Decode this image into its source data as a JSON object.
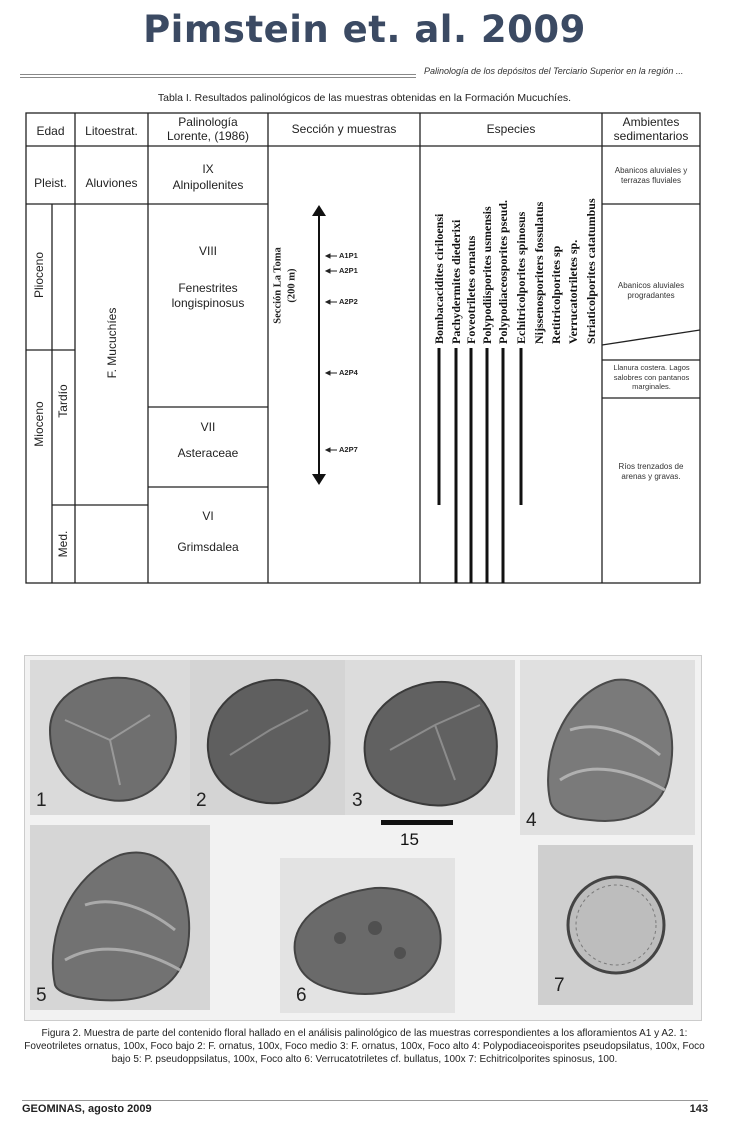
{
  "banner": {
    "title": "Pimstein et. al. 2009"
  },
  "running_head": "Palinología de los depósitos del Terciario Superior en la región ...",
  "table": {
    "caption": "Tabla I. Resultados palinológicos de las muestras obtenidas en la Formación Mucuchíes.",
    "headers": {
      "edad": "Edad",
      "litoestrat": "Litoestrat.",
      "palinologia_1": "Palinología",
      "palinologia_2": "Lorente, (1986)",
      "seccion": "Sección  y muestras",
      "especies": "Especies",
      "ambientes_1": "Ambientes",
      "ambientes_2": "sedimentarios"
    },
    "epochs": {
      "pleist": "Pleist.",
      "plioceno": "Plioceno",
      "mioceno": "Mioceno",
      "tardio": "Tardío",
      "med": "Med."
    },
    "lithology": {
      "aluviones": "Aluviones",
      "mucuchies": "F. Mucuchíes"
    },
    "zones": [
      {
        "num": "IX",
        "name": "Alnipollenites"
      },
      {
        "num": "VIII",
        "name": "Fenestrites longispinosus"
      },
      {
        "num": "VII",
        "name": "Asteraceae"
      },
      {
        "num": "VI",
        "name": "Grimsdalea"
      }
    ],
    "section_label_1": "Sección La Toma",
    "section_label_2": "(200 m)",
    "samples": [
      "A1P1",
      "A2P1",
      "A2P2",
      "A2P4",
      "A2P7"
    ],
    "species": [
      "Bombacacidites ciriloensi",
      "Pachydermites diederixi",
      "Foveotriletes ornatus",
      "Polypodiisporites usmensis",
      "Polypodiaceosporites pseud.",
      "Echitricolporites spinosus",
      "Nijssenosporiters fossulatus",
      "Retitricolporites sp",
      "Verrucatotriletes sp.",
      "Striaticolporites catatumbus"
    ],
    "environments": [
      "Abanicos aluviales y terrazas fluviales",
      "Abanicos aluviales progradantes",
      "Llanura costera. Lagos salobres con pantanos marginales.",
      "Ríos trenzados de arenas y gravas."
    ]
  },
  "figure": {
    "panel_labels": [
      "1",
      "2",
      "3",
      "4",
      "5",
      "6",
      "7"
    ],
    "scale_label": "15",
    "caption_1": "Figura 2. Muestra de parte del contenido floral hallado en el análisis palinológico de las muestras correspondientes a los afloramientos A1 y A2. 1: Foveotriletes ornatus, 100x, Foco bajo 2: F. ornatus, 100x, Foco medio 3: F. ornatus, 100x, Foco alto 4:",
    "caption_2": "Polypodiaceoisporites pseudopsilatus, 100x, Foco bajo 5: P. pseudoppsilatus, 100x, Foco alto 6: Verrucatotriletes cf. bullatus, 100x 7: Echitricolporites spinosus, 100."
  },
  "footer": {
    "left": "GEOMINAS, agosto 2009",
    "right": "143"
  }
}
